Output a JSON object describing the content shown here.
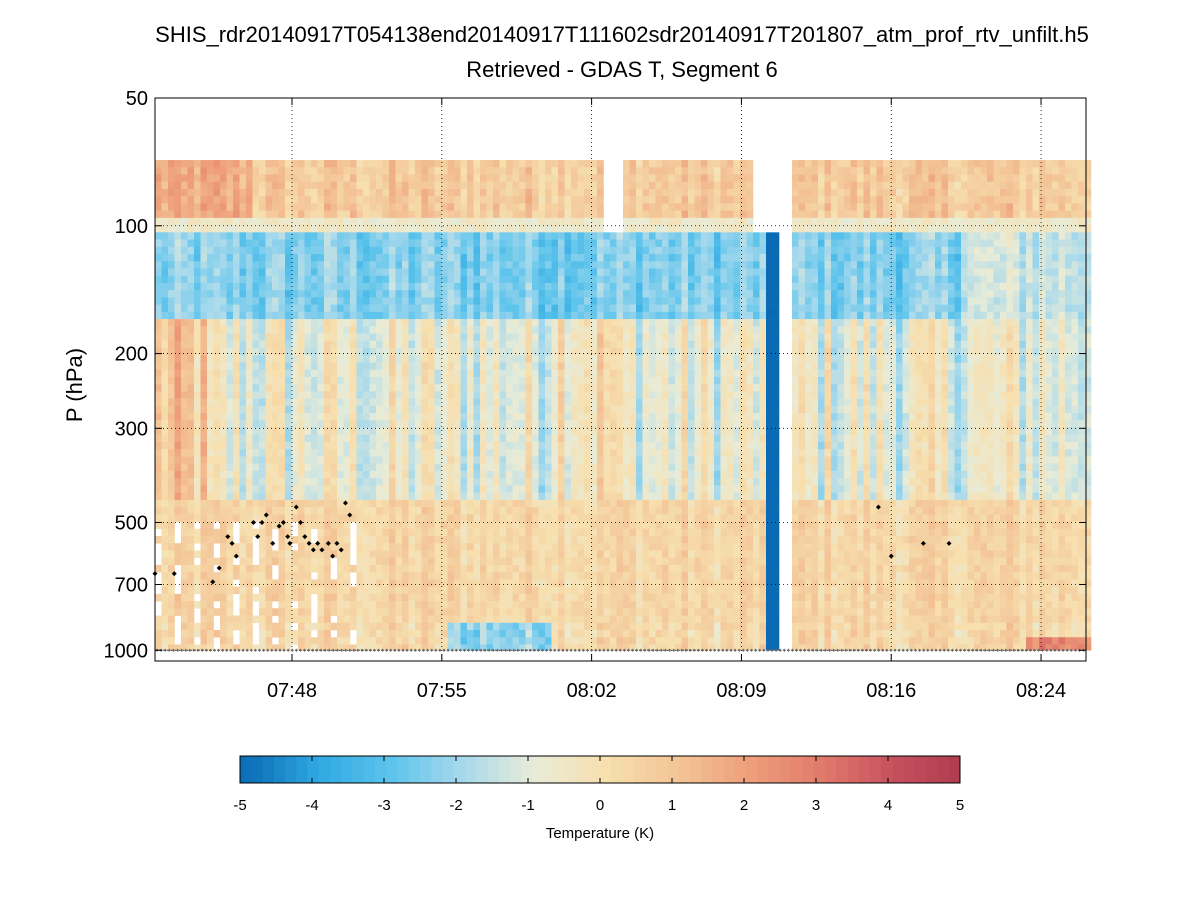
{
  "chart_data": {
    "type": "heatmap",
    "title": "SHIS_rdr20140917T054138end20140917T111602sdr20140917T201807_atm_prof_rtv_unfilt.h5",
    "subtitle": "Retrieved - GDAS T, Segment 6",
    "xlabel": "",
    "ylabel": "P (hPa)",
    "x_ticks": [
      "07:48",
      "07:55",
      "08:02",
      "08:09",
      "08:16",
      "08:24"
    ],
    "x_tick_minutes": [
      468,
      475,
      482,
      489,
      496,
      503
    ],
    "x_range_minutes": [
      461.6,
      505.1
    ],
    "y_ticks": [
      "50",
      "100",
      "200",
      "300",
      "500",
      "700",
      "1000"
    ],
    "y_tick_values": [
      50,
      100,
      200,
      300,
      500,
      700,
      1000
    ],
    "y_range": [
      50,
      1060
    ],
    "y_scale": "log",
    "y_reversed": true,
    "grid": true,
    "colorbar": {
      "label": "Temperature (K)",
      "range": [
        -5,
        5
      ],
      "ticks": [
        "-5",
        "-4",
        "-3",
        "-2",
        "-1",
        "0",
        "1",
        "2",
        "3",
        "4",
        "5"
      ],
      "colormap_stops": [
        "#0a6bb5",
        "#2ea8e2",
        "#5cc3ec",
        "#a6d9ec",
        "#e8ecd8",
        "#f7dfae",
        "#f3c497",
        "#ee9f7a",
        "#e07a6c",
        "#c6505d",
        "#ad3a4d"
      ]
    },
    "cloud_top_markers_minutes": [
      461.6,
      462.5,
      464.3,
      464.6,
      465.0,
      465.2,
      465.4,
      466.2,
      466.4,
      466.6,
      466.8,
      467.1,
      467.4,
      467.6,
      467.8,
      467.9,
      468.2,
      468.4,
      468.6,
      468.8,
      469.0,
      469.2,
      469.4,
      469.7,
      469.9,
      470.1,
      470.3,
      470.5,
      470.7,
      495.4,
      496.0,
      497.5,
      498.7
    ],
    "cloud_top_markers_hpa": [
      660,
      660,
      690,
      640,
      540,
      560,
      600,
      500,
      540,
      500,
      480,
      560,
      510,
      500,
      540,
      560,
      460,
      500,
      540,
      560,
      580,
      560,
      580,
      560,
      600,
      560,
      580,
      450,
      480,
      460,
      600,
      560,
      560
    ]
  }
}
